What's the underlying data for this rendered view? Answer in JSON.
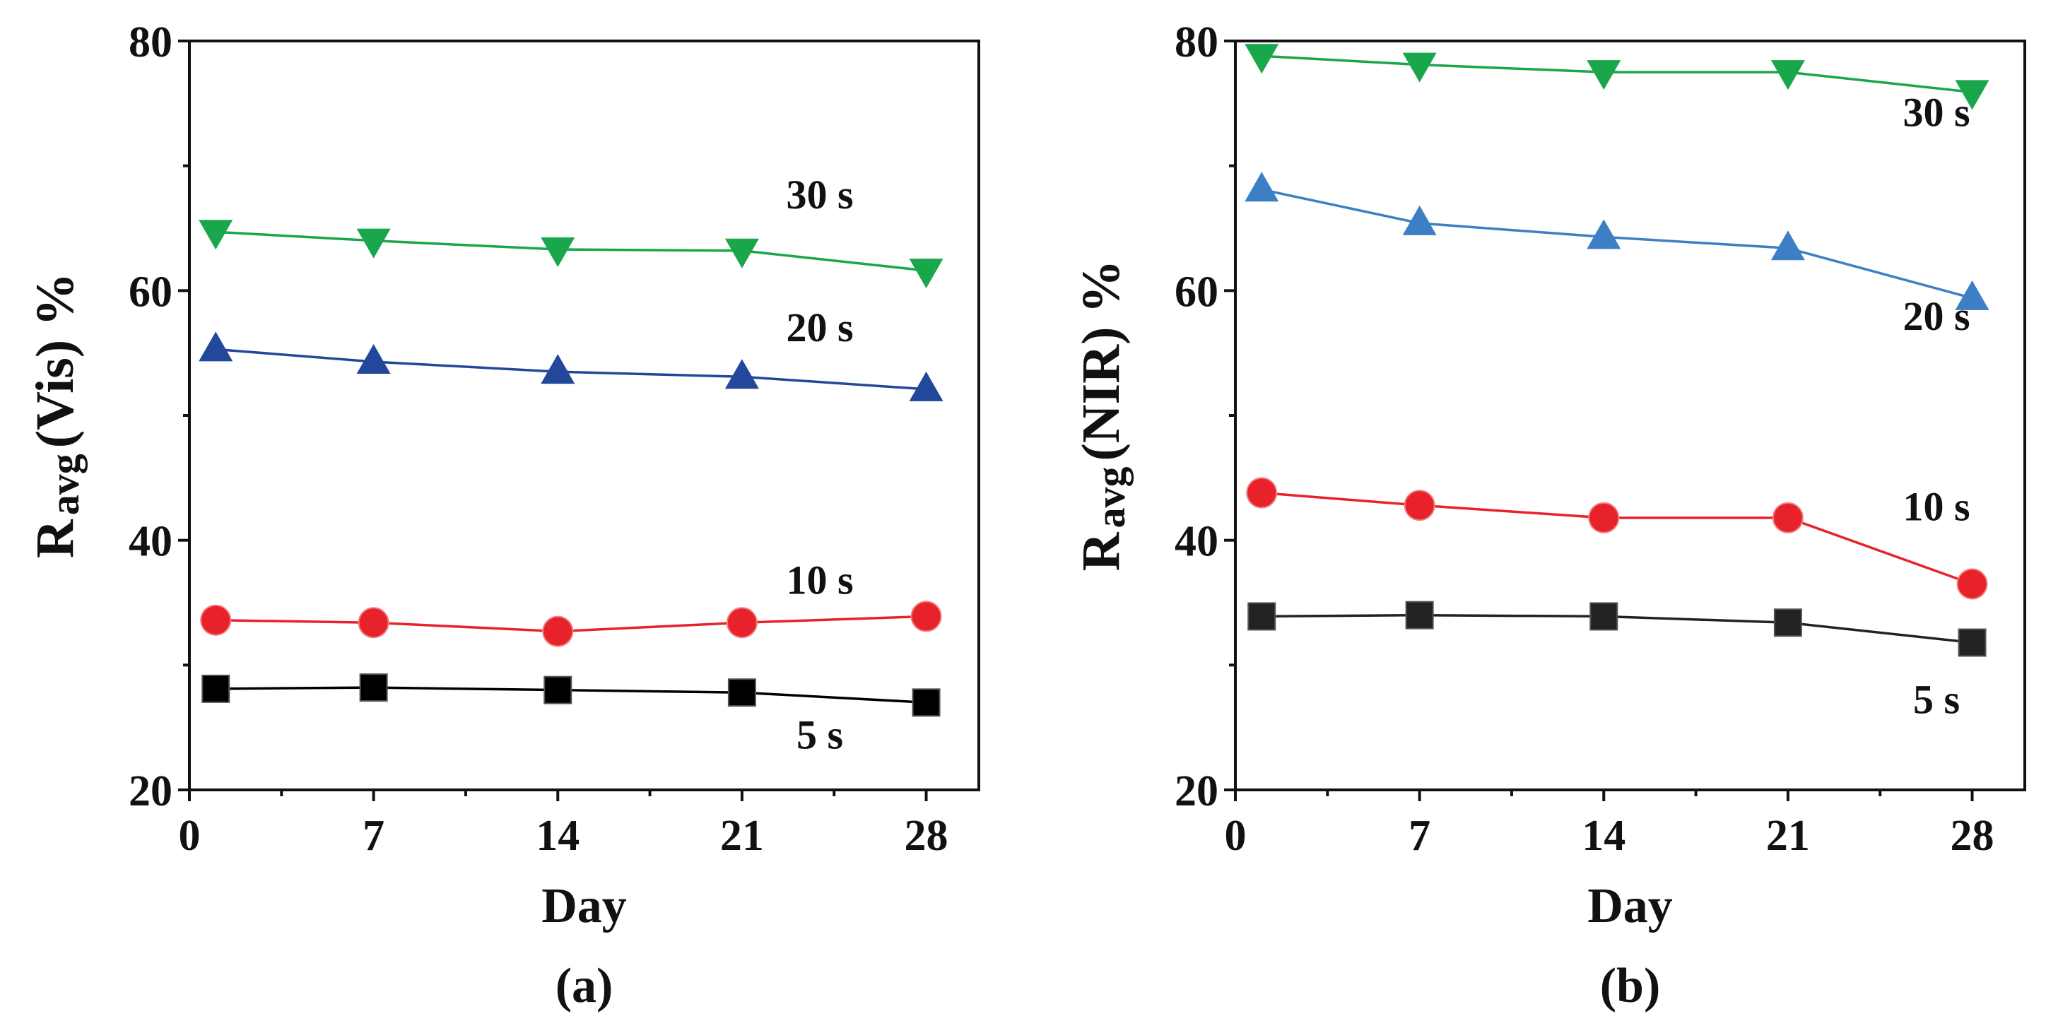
{
  "chart_data": [
    {
      "type": "line",
      "panel_label": "(a)",
      "ylabel_main": "R",
      "ylabel_sub": "avg",
      "ylabel_rest": "(Vis) %",
      "xlabel": "Day",
      "x": [
        1,
        7,
        14,
        21,
        28
      ],
      "xticks": [
        0,
        7,
        14,
        21,
        28
      ],
      "xlim": [
        0,
        30
      ],
      "yticks": [
        20,
        40,
        60,
        80
      ],
      "ylim": [
        20,
        80
      ],
      "series": [
        {
          "name": "5 s",
          "marker": "square",
          "color": "#000000",
          "values": [
            28.1,
            28.2,
            28.0,
            27.8,
            27.0
          ]
        },
        {
          "name": "10 s",
          "marker": "circle",
          "color": "#e8222a",
          "values": [
            33.6,
            33.4,
            32.7,
            33.4,
            33.9
          ]
        },
        {
          "name": "20 s",
          "marker": "triangle-up",
          "color": "#23479b",
          "values": [
            55.3,
            54.3,
            53.5,
            53.1,
            52.1
          ]
        },
        {
          "name": "30 s",
          "marker": "triangle-down",
          "color": "#1aa64a",
          "values": [
            64.7,
            64.0,
            63.3,
            63.2,
            61.6
          ]
        }
      ]
    },
    {
      "type": "line",
      "panel_label": "(b)",
      "ylabel_main": "R",
      "ylabel_sub": "avg",
      "ylabel_rest": "(NIR) %",
      "xlabel": "Day",
      "x": [
        1,
        7,
        14,
        21,
        28
      ],
      "xticks": [
        0,
        7,
        14,
        21,
        28
      ],
      "xlim": [
        0,
        30
      ],
      "yticks": [
        20,
        40,
        60,
        80
      ],
      "ylim": [
        20,
        80
      ],
      "series": [
        {
          "name": "5 s",
          "marker": "square",
          "color": "#222222",
          "values": [
            33.9,
            34.0,
            33.9,
            33.4,
            31.8
          ]
        },
        {
          "name": "10 s",
          "marker": "circle",
          "color": "#e8222a",
          "values": [
            43.8,
            42.8,
            41.8,
            41.8,
            36.5
          ]
        },
        {
          "name": "20 s",
          "marker": "triangle-up",
          "color": "#3c7fc4",
          "values": [
            68.1,
            65.4,
            64.3,
            63.4,
            59.4
          ]
        },
        {
          "name": "30 s",
          "marker": "triangle-down",
          "color": "#1aa64a",
          "values": [
            78.8,
            78.1,
            77.5,
            77.5,
            75.9
          ]
        }
      ]
    }
  ]
}
